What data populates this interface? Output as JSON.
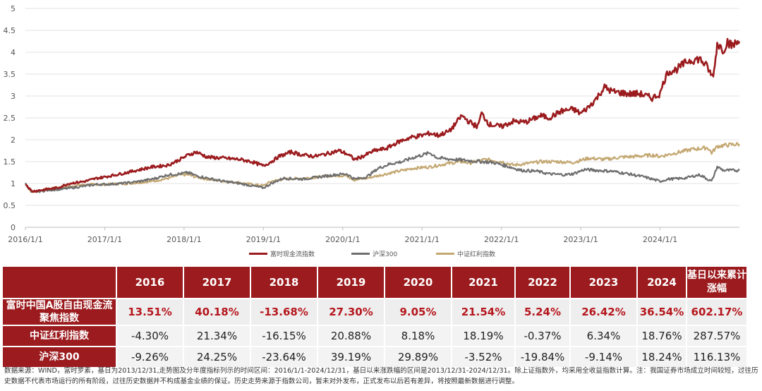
{
  "chart_data": {
    "type": "line",
    "x_tick_labels": [
      "2016/1/1",
      "2017/1/1",
      "2018/1/1",
      "2019/1/1",
      "2020/1/1",
      "2021/1/1",
      "2022/1/1",
      "2023/1/1",
      "2024/1/1"
    ],
    "x_range": [
      2016.0,
      2025.0
    ],
    "y_tick_labels": [
      "0",
      "0.5",
      "1",
      "1.5",
      "2",
      "2.5",
      "3",
      "3.5",
      "4",
      "4.5",
      "5"
    ],
    "ylim": [
      0,
      5
    ],
    "grid": "horizontal",
    "legend_position": "bottom",
    "series": [
      {
        "name": "富时现金流指数",
        "color": "#9b1b1e",
        "x": [
          2016.0,
          2016.08,
          2016.2,
          2016.4,
          2016.55,
          2016.75,
          2016.9,
          2017.0,
          2017.2,
          2017.4,
          2017.6,
          2017.8,
          2017.95,
          2018.05,
          2018.15,
          2018.3,
          2018.5,
          2018.7,
          2018.85,
          2019.0,
          2019.1,
          2019.2,
          2019.35,
          2019.5,
          2019.65,
          2019.8,
          2019.95,
          2020.05,
          2020.15,
          2020.25,
          2020.4,
          2020.55,
          2020.7,
          2020.85,
          2021.0,
          2021.1,
          2021.2,
          2021.35,
          2021.5,
          2021.6,
          2021.7,
          2021.75,
          2021.85,
          2022.0,
          2022.15,
          2022.3,
          2022.5,
          2022.6,
          2022.75,
          2022.9,
          2023.0,
          2023.1,
          2023.2,
          2023.3,
          2023.4,
          2023.6,
          2023.75,
          2023.9,
          2024.0,
          2024.05,
          2024.1,
          2024.2,
          2024.35,
          2024.5,
          2024.6,
          2024.65,
          2024.68,
          2024.72,
          2024.8,
          2024.85,
          2024.9,
          2025.0
        ],
        "y": [
          1.0,
          0.82,
          0.85,
          0.9,
          1.0,
          1.05,
          1.12,
          1.15,
          1.22,
          1.3,
          1.38,
          1.42,
          1.55,
          1.65,
          1.72,
          1.6,
          1.58,
          1.55,
          1.5,
          1.4,
          1.5,
          1.62,
          1.72,
          1.65,
          1.62,
          1.68,
          1.75,
          1.68,
          1.55,
          1.62,
          1.75,
          1.8,
          1.95,
          2.05,
          2.1,
          2.15,
          2.1,
          2.2,
          2.55,
          2.4,
          2.3,
          2.6,
          2.35,
          2.3,
          2.42,
          2.4,
          2.55,
          2.5,
          2.65,
          2.7,
          2.6,
          2.75,
          2.95,
          3.2,
          3.1,
          3.05,
          3.05,
          2.95,
          3.05,
          3.35,
          3.55,
          3.6,
          3.8,
          3.85,
          3.65,
          3.45,
          3.55,
          4.2,
          4.05,
          4.25,
          4.15,
          4.25
        ],
        "cumulative_label": "602.17%"
      },
      {
        "name": "沪深300",
        "color": "#6e6e6e",
        "x": [
          2016.0,
          2016.08,
          2016.3,
          2016.5,
          2016.7,
          2016.9,
          2017.0,
          2017.2,
          2017.4,
          2017.6,
          2017.8,
          2017.95,
          2018.05,
          2018.15,
          2018.3,
          2018.5,
          2018.7,
          2018.85,
          2019.0,
          2019.1,
          2019.25,
          2019.5,
          2019.7,
          2019.9,
          2020.05,
          2020.15,
          2020.3,
          2020.45,
          2020.6,
          2020.75,
          2020.9,
          2021.1,
          2021.2,
          2021.4,
          2021.6,
          2021.75,
          2021.9,
          2022.1,
          2022.25,
          2022.45,
          2022.6,
          2022.8,
          2022.9,
          2023.05,
          2023.2,
          2023.4,
          2023.6,
          2023.8,
          2024.0,
          2024.1,
          2024.3,
          2024.5,
          2024.65,
          2024.72,
          2024.8,
          2025.0
        ],
        "y": [
          1.0,
          0.8,
          0.85,
          0.88,
          0.93,
          0.98,
          0.98,
          1.0,
          1.04,
          1.1,
          1.2,
          1.22,
          1.25,
          1.18,
          1.12,
          1.05,
          1.0,
          0.95,
          0.9,
          1.0,
          1.12,
          1.1,
          1.15,
          1.2,
          1.22,
          1.1,
          1.15,
          1.35,
          1.45,
          1.5,
          1.6,
          1.7,
          1.58,
          1.55,
          1.52,
          1.5,
          1.48,
          1.38,
          1.3,
          1.28,
          1.22,
          1.2,
          1.22,
          1.32,
          1.3,
          1.28,
          1.22,
          1.15,
          1.05,
          1.1,
          1.12,
          1.2,
          1.05,
          1.38,
          1.3,
          1.3
        ],
        "cumulative_label": "116.13%"
      },
      {
        "name": "中证红利指数",
        "color": "#c4a872",
        "x": [
          2016.0,
          2016.08,
          2016.3,
          2016.5,
          2016.7,
          2016.9,
          2017.0,
          2017.3,
          2017.6,
          2017.8,
          2017.95,
          2018.05,
          2018.15,
          2018.3,
          2018.5,
          2018.7,
          2018.85,
          2019.0,
          2019.1,
          2019.25,
          2019.5,
          2019.7,
          2019.9,
          2020.05,
          2020.15,
          2020.3,
          2020.5,
          2020.7,
          2020.9,
          2021.1,
          2021.3,
          2021.5,
          2021.6,
          2021.8,
          2022.0,
          2022.15,
          2022.3,
          2022.5,
          2022.7,
          2022.9,
          2023.1,
          2023.3,
          2023.5,
          2023.7,
          2023.9,
          2024.0,
          2024.2,
          2024.4,
          2024.6,
          2024.65,
          2024.72,
          2024.85,
          2025.0
        ],
        "y": [
          1.0,
          0.8,
          0.88,
          0.92,
          0.97,
          0.98,
          0.98,
          1.0,
          1.05,
          1.12,
          1.2,
          1.2,
          1.15,
          1.1,
          1.05,
          1.02,
          0.98,
          0.95,
          1.05,
          1.1,
          1.12,
          1.15,
          1.18,
          1.18,
          1.08,
          1.12,
          1.2,
          1.28,
          1.35,
          1.38,
          1.45,
          1.5,
          1.47,
          1.55,
          1.5,
          1.42,
          1.45,
          1.5,
          1.5,
          1.48,
          1.58,
          1.55,
          1.6,
          1.62,
          1.65,
          1.62,
          1.7,
          1.78,
          1.82,
          1.7,
          1.85,
          1.88,
          1.9
        ],
        "cumulative_label": "287.57%"
      }
    ]
  },
  "legend": {
    "items": [
      {
        "label": "富时现金流指数",
        "color": "#9b1b1e"
      },
      {
        "label": "沪深300",
        "color": "#6e6e6e"
      },
      {
        "label": "中证红利指数",
        "color": "#c4a872"
      }
    ]
  },
  "table": {
    "headers": [
      "2016",
      "2017",
      "2018",
      "2019",
      "2020",
      "2021",
      "2022",
      "2023",
      "2024",
      "基日以来累计涨幅"
    ],
    "rows": [
      {
        "name": "富时中国A股自由现金流聚焦指数",
        "values": [
          "13.51%",
          "40.18%",
          "-13.68%",
          "27.30%",
          "9.05%",
          "21.54%",
          "5.24%",
          "26.42%",
          "36.54%",
          "602.17%"
        ]
      },
      {
        "name": "中证红利指数",
        "values": [
          "-4.30%",
          "21.34%",
          "-16.15%",
          "20.88%",
          "8.18%",
          "18.19%",
          "-0.37%",
          "6.34%",
          "18.76%",
          "287.57%"
        ]
      },
      {
        "name": "沪深300",
        "values": [
          "-9.26%",
          "24.25%",
          "-23.64%",
          "39.19%",
          "29.89%",
          "-3.52%",
          "-19.84%",
          "-9.14%",
          "18.24%",
          "116.13%"
        ]
      }
    ]
  },
  "source_note": "数据来源：WIND，富时罗素，基日为2013/12/31,走势图及分年度指标列示的时间区间：2016/1/1-2024/12/31，基日以来涨跌幅的区间是2013/12/31-2024/12/31。除上证指数外，均采用全收益指数计算。注：我国证券市场成立时间较短，过往历史数据不代表市场运行的所有阶段，过往历史数据并不构成基金业绩的保证。历史走势来源于指数公司，暂未对外发布，正式发布以后若有差异，将按照最新数据进行调整。"
}
